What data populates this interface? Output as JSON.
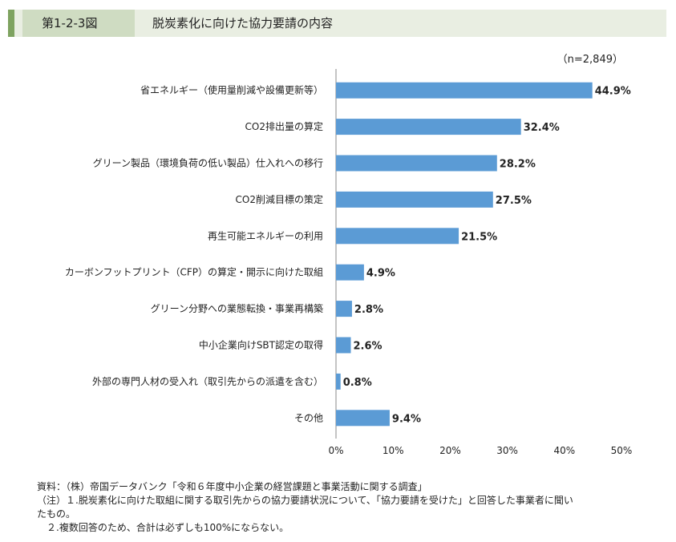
{
  "header": {
    "figure_number": "第1-2-3図",
    "title": "脱炭素化に向けた協力要請の内容"
  },
  "sample_note": "（n=2,849）",
  "colors": {
    "bar": "#5b9bd5",
    "header_accent": "#7ea360",
    "header_num_bg": "#cfdcc2",
    "header_bg": "#e9eee2"
  },
  "chart_data": {
    "type": "bar",
    "orientation": "horizontal",
    "categories": [
      "省エネルギー（使用量削減や設備更新等）",
      "CO2排出量の算定",
      "グリーン製品（環境負荷の低い製品）仕入れへの移行",
      "CO2削減目標の策定",
      "再生可能エネルギーの利用",
      "カーボンフットプリント（CFP）の算定・開示に向けた取組",
      "グリーン分野への業態転換・事業再構築",
      "中小企業向けSBT認定の取得",
      "外部の専門人材の受入れ（取引先からの派遣を含む）",
      "その他"
    ],
    "values": [
      44.9,
      32.4,
      28.2,
      27.5,
      21.5,
      4.9,
      2.8,
      2.6,
      0.8,
      9.4
    ],
    "value_labels": [
      "44.9%",
      "32.4%",
      "28.2%",
      "27.5%",
      "21.5%",
      "4.9%",
      "2.8%",
      "2.6%",
      "0.8%",
      "9.4%"
    ],
    "xlim": [
      0,
      50
    ],
    "xticks": [
      0,
      10,
      20,
      30,
      40,
      50
    ],
    "xtick_labels": [
      "0%",
      "10%",
      "20%",
      "30%",
      "40%",
      "50%"
    ],
    "grid": false
  },
  "footnotes": [
    "資料：（株）帝国データバンク「令和６年度中小企業の経営課題と事業活動に関する調査」",
    "（注）１.脱炭素化に向けた取組に関する取引先からの協力要請状況について、「協力要請を受けた」と回答した事業者に聞い",
    "たもの。",
    "　２.複数回答のため、合計は必ずしも100%にならない。"
  ]
}
